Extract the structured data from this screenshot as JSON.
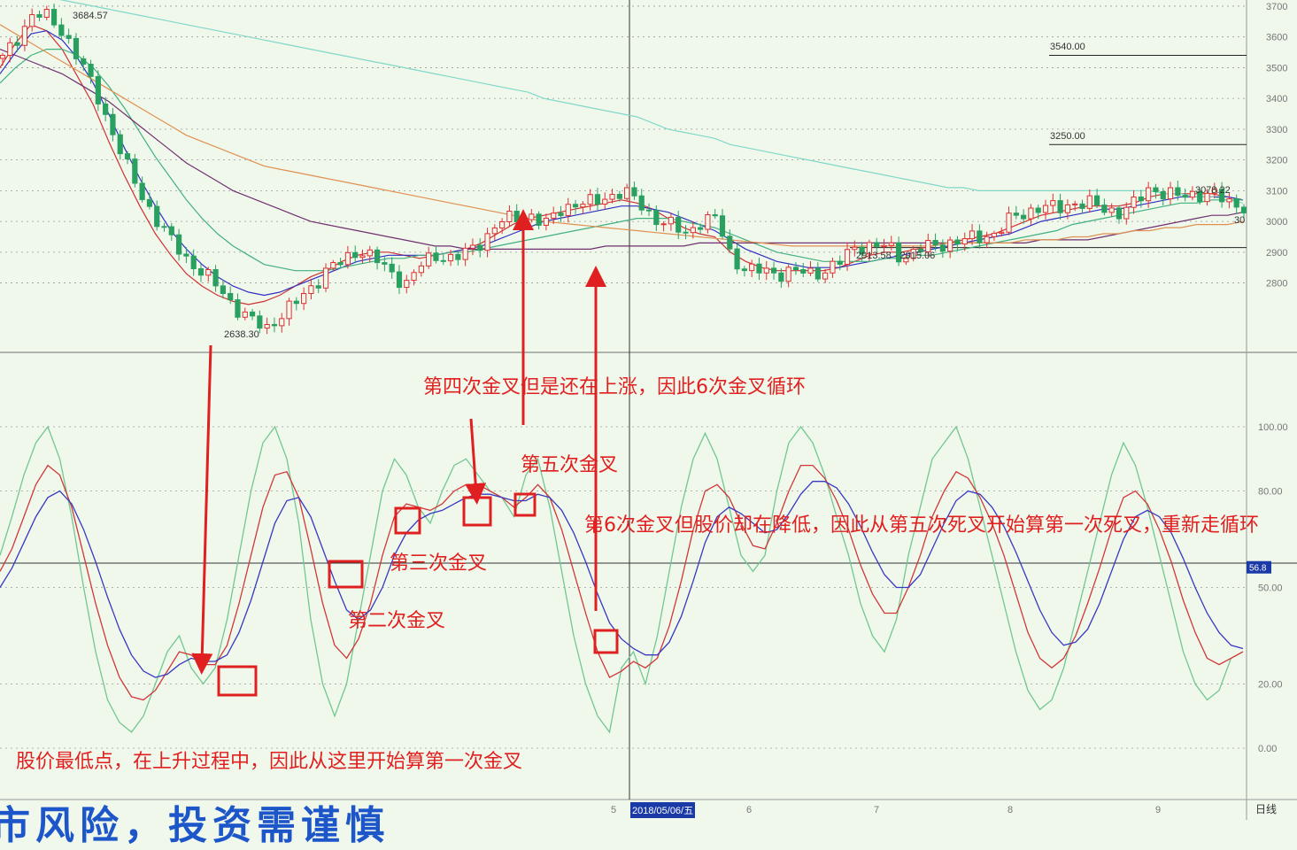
{
  "chart_data": [
    {
      "type": "candlestick",
      "title": "",
      "x_ticks": [
        "5",
        "2018/05/06/五",
        "6",
        "7",
        "8",
        "9"
      ],
      "y_ticks": [
        2800,
        2900,
        3000,
        3100,
        3200,
        3300,
        3400,
        3500,
        3600,
        3700
      ],
      "ylim": [
        2580,
        3720
      ],
      "grid": true,
      "price_labels": {
        "high": "3684.57",
        "low": "2638.30",
        "range": "2913.58 - 2915.06",
        "last": "3078.22",
        "level_3540": "3540.00",
        "level_3250": "3250.00",
        "right_small": "30"
      },
      "close_path": [
        3530,
        3600,
        3680,
        3660,
        3610,
        3520,
        3420,
        3300,
        3180,
        3080,
        3000,
        2930,
        2870,
        2830,
        2780,
        2720,
        2680,
        2650,
        2700,
        2740,
        2790,
        2850,
        2870,
        2910,
        2880,
        2830,
        2800,
        2860,
        2890,
        2880,
        2900,
        2940,
        3000,
        3010,
        3020,
        2990,
        3040,
        3060,
        3060,
        3080,
        3100,
        3060,
        3010,
        2990,
        2960,
        3000,
        3010,
        2880,
        2840,
        2840,
        2830,
        2840,
        2830,
        2840,
        2870,
        2920,
        2920,
        2920,
        2880,
        2910,
        2920,
        2930,
        2940,
        2950,
        2960,
        3010,
        3030,
        3050,
        3040,
        3060,
        3060,
        3040,
        3030,
        3060,
        3110,
        3090,
        3080,
        3090,
        3090,
        3060,
        3050
      ],
      "moving_averages": [
        {
          "color": "#d03030",
          "values": [
            3500,
            3580,
            3640,
            3620,
            3560,
            3470,
            3380,
            3260,
            3150,
            3050,
            2960,
            2890,
            2830,
            2790,
            2760,
            2740,
            2730,
            2740,
            2760,
            2790,
            2820,
            2840,
            2870,
            2890,
            2900,
            2900,
            2890,
            2880,
            2890,
            2900,
            2910,
            2930,
            2960,
            2990,
            3010,
            3020,
            3030,
            3040,
            3050,
            3060,
            3070,
            3060,
            3040,
            3010,
            2980,
            2960,
            2950,
            2900,
            2870,
            2850,
            2840,
            2840,
            2840,
            2840,
            2850,
            2870,
            2890,
            2900,
            2900,
            2910,
            2920,
            2930,
            2940,
            2950,
            2960,
            2980,
            3000,
            3020,
            3030,
            3040,
            3050,
            3050,
            3050,
            3060,
            3080,
            3090,
            3090,
            3090,
            3090,
            3080,
            3070
          ]
        },
        {
          "color": "#3030c0",
          "values": [
            3480,
            3550,
            3610,
            3620,
            3590,
            3530,
            3450,
            3350,
            3240,
            3140,
            3050,
            2970,
            2910,
            2860,
            2820,
            2790,
            2770,
            2760,
            2770,
            2790,
            2810,
            2830,
            2850,
            2870,
            2880,
            2890,
            2890,
            2890,
            2890,
            2900,
            2910,
            2920,
            2940,
            2960,
            2980,
            3000,
            3010,
            3020,
            3030,
            3040,
            3050,
            3050,
            3040,
            3030,
            3010,
            2990,
            2970,
            2940,
            2910,
            2890,
            2870,
            2860,
            2850,
            2850,
            2850,
            2860,
            2870,
            2880,
            2890,
            2900,
            2910,
            2920,
            2930,
            2940,
            2950,
            2960,
            2980,
            3000,
            3010,
            3020,
            3030,
            3040,
            3040,
            3050,
            3060,
            3070,
            3080,
            3080,
            3080,
            3080,
            3070
          ]
        },
        {
          "color": "#40b080",
          "values": [
            3450,
            3500,
            3540,
            3560,
            3560,
            3540,
            3500,
            3440,
            3370,
            3290,
            3210,
            3140,
            3070,
            3010,
            2960,
            2920,
            2890,
            2860,
            2850,
            2840,
            2840,
            2840,
            2850,
            2860,
            2870,
            2880,
            2880,
            2890,
            2890,
            2900,
            2900,
            2910,
            2920,
            2930,
            2940,
            2950,
            2960,
            2970,
            2980,
            2990,
            3000,
            3010,
            3010,
            3010,
            3000,
            2990,
            2980,
            2960,
            2940,
            2920,
            2900,
            2890,
            2880,
            2870,
            2870,
            2870,
            2870,
            2880,
            2880,
            2890,
            2890,
            2900,
            2910,
            2920,
            2930,
            2940,
            2950,
            2960,
            2970,
            2990,
            3000,
            3010,
            3020,
            3030,
            3040,
            3050,
            3060,
            3060,
            3070,
            3070,
            3070
          ]
        },
        {
          "color": "#703070",
          "values": [
            3560,
            3540,
            3520,
            3500,
            3480,
            3450,
            3420,
            3390,
            3350,
            3310,
            3270,
            3230,
            3190,
            3160,
            3130,
            3100,
            3080,
            3060,
            3040,
            3020,
            3000,
            2990,
            2980,
            2970,
            2960,
            2950,
            2940,
            2930,
            2920,
            2920,
            2910,
            2910,
            2910,
            2910,
            2910,
            2910,
            2910,
            2910,
            2910,
            2920,
            2920,
            2920,
            2920,
            2920,
            2920,
            2930,
            2930,
            2930,
            2930,
            2930,
            2930,
            2930,
            2930,
            2930,
            2930,
            2930,
            2930,
            2930,
            2930,
            2930,
            2930,
            2930,
            2930,
            2930,
            2930,
            2930,
            2930,
            2940,
            2940,
            2940,
            2940,
            2950,
            2960,
            2970,
            2980,
            2990,
            3000,
            3010,
            3020,
            3020,
            3030
          ]
        },
        {
          "color": "#e09050",
          "values": [
            3640,
            3610,
            3580,
            3550,
            3520,
            3490,
            3460,
            3430,
            3400,
            3370,
            3340,
            3310,
            3280,
            3260,
            3240,
            3220,
            3200,
            3180,
            3170,
            3160,
            3150,
            3140,
            3130,
            3120,
            3110,
            3100,
            3090,
            3080,
            3070,
            3060,
            3050,
            3040,
            3030,
            3020,
            3010,
            3000,
            2995,
            2990,
            2985,
            2980,
            2975,
            2970,
            2965,
            2960,
            2955,
            2950,
            2945,
            2940,
            2935,
            2930,
            2925,
            2920,
            2920,
            2920,
            2920,
            2920,
            2920,
            2920,
            2920,
            2920,
            2920,
            2930,
            2930,
            2930,
            2930,
            2930,
            2940,
            2940,
            2940,
            2950,
            2950,
            2960,
            2960,
            2970,
            2970,
            2980,
            2980,
            2990,
            2990,
            2990,
            3000
          ]
        },
        {
          "color": "#80d8c8",
          "values": [
            3760,
            3750,
            3740,
            3730,
            3720,
            3710,
            3700,
            3690,
            3680,
            3670,
            3660,
            3650,
            3640,
            3630,
            3620,
            3610,
            3600,
            3590,
            3580,
            3570,
            3560,
            3550,
            3540,
            3530,
            3520,
            3510,
            3500,
            3490,
            3480,
            3470,
            3460,
            3450,
            3440,
            3430,
            3420,
            3400,
            3390,
            3380,
            3370,
            3360,
            3350,
            3340,
            3320,
            3300,
            3290,
            3280,
            3270,
            3250,
            3240,
            3230,
            3220,
            3210,
            3200,
            3190,
            3180,
            3170,
            3160,
            3150,
            3140,
            3130,
            3120,
            3110,
            3110,
            3100,
            3100,
            3100,
            3100,
            3100,
            3100,
            3100,
            3100,
            3100,
            3100,
            3100,
            3100,
            3090,
            3090,
            3080,
            3080,
            3070,
            3060
          ]
        }
      ],
      "horizontal_levels": [
        3540,
        3250,
        2915
      ]
    },
    {
      "type": "line",
      "title": "",
      "y_ticks": [
        0,
        20,
        50,
        80,
        100
      ],
      "ylim": [
        -10,
        115
      ],
      "marker_level": 56,
      "marker_label": "56.8",
      "series": [
        {
          "color": "#70c890",
          "values": [
            60,
            72,
            85,
            95,
            100,
            90,
            72,
            50,
            30,
            15,
            8,
            5,
            10,
            20,
            30,
            35,
            25,
            20,
            25,
            40,
            60,
            80,
            95,
            100,
            90,
            70,
            40,
            20,
            10,
            20,
            40,
            60,
            80,
            90,
            85,
            75,
            70,
            80,
            88,
            90,
            85,
            80,
            78,
            72,
            85,
            90,
            75,
            55,
            35,
            20,
            10,
            5,
            25,
            30,
            20,
            35,
            55,
            75,
            90,
            98,
            90,
            75,
            60,
            55,
            60,
            80,
            95,
            100,
            95,
            85,
            72,
            60,
            45,
            35,
            30,
            40,
            60,
            75,
            90,
            95,
            100,
            90,
            75,
            60,
            45,
            30,
            18,
            12,
            15,
            25,
            40,
            55,
            70,
            85,
            95,
            88,
            75,
            60,
            45,
            30,
            20,
            15,
            18,
            28,
            30
          ]
        },
        {
          "color": "#d03838",
          "values": [
            55,
            62,
            72,
            82,
            88,
            85,
            75,
            60,
            45,
            32,
            22,
            16,
            15,
            18,
            24,
            30,
            29,
            26,
            26,
            32,
            45,
            60,
            75,
            85,
            86,
            78,
            62,
            45,
            32,
            28,
            34,
            45,
            60,
            72,
            76,
            75,
            74,
            76,
            80,
            82,
            82,
            80,
            78,
            75,
            78,
            82,
            78,
            68,
            55,
            42,
            30,
            22,
            24,
            27,
            25,
            28,
            38,
            52,
            68,
            80,
            82,
            78,
            70,
            63,
            62,
            70,
            80,
            88,
            88,
            84,
            77,
            68,
            57,
            48,
            42,
            42,
            50,
            60,
            72,
            80,
            86,
            84,
            78,
            70,
            60,
            48,
            36,
            28,
            25,
            28,
            35,
            45,
            56,
            68,
            78,
            80,
            76,
            68,
            58,
            46,
            36,
            28,
            26,
            28,
            30
          ]
        },
        {
          "color": "#3838c0",
          "values": [
            50,
            56,
            64,
            72,
            78,
            80,
            76,
            68,
            58,
            47,
            37,
            29,
            24,
            22,
            23,
            26,
            28,
            27,
            27,
            29,
            36,
            46,
            58,
            70,
            77,
            78,
            72,
            62,
            52,
            43,
            40,
            43,
            50,
            60,
            67,
            71,
            73,
            74,
            76,
            78,
            79,
            79,
            78,
            77,
            77,
            79,
            78,
            74,
            67,
            58,
            48,
            39,
            34,
            31,
            29,
            29,
            33,
            41,
            52,
            64,
            72,
            75,
            73,
            70,
            67,
            68,
            73,
            79,
            83,
            83,
            81,
            76,
            69,
            61,
            54,
            50,
            50,
            54,
            62,
            70,
            77,
            80,
            79,
            75,
            69,
            61,
            52,
            43,
            36,
            32,
            33,
            37,
            45,
            55,
            65,
            72,
            74,
            72,
            67,
            59,
            50,
            42,
            36,
            32,
            31
          ]
        }
      ]
    }
  ],
  "annotations": {
    "golden_cross_1": "股价最低点，在上升过程中，因此从这里开始算第一次金叉",
    "golden_cross_2": "第二次金叉",
    "golden_cross_3": "第三次金叉",
    "golden_cross_4": "第四次金叉但是还在上涨，因此6次金叉循环",
    "golden_cross_5": "第五次金叉",
    "golden_cross_6": "第6次金叉但股价却在降低，因此从第五次死叉开始算第一次死叉，重新走循环"
  },
  "footer": {
    "selected_date": "2018/05/06/五",
    "period": "日线",
    "watermark": "市风险，投资需谨慎"
  },
  "colors": {
    "background": "#f0f8ec",
    "annotation": "#e02020",
    "up": "#e03030",
    "down": "#2aa060"
  }
}
